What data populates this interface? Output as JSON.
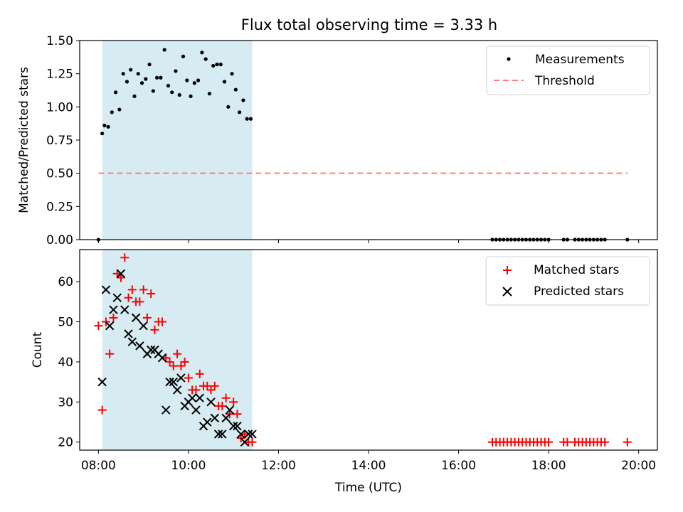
{
  "chart_data": [
    {
      "type": "scatter",
      "title": "Flux total observing time = 3.33 h",
      "ylabel": "Matched/Predicted stars",
      "xlabel": "",
      "xlim": [
        "07:35",
        "20:25"
      ],
      "ylim": [
        0,
        1.5
      ],
      "x_tick_labels": [
        "08:00",
        "10:00",
        "12:00",
        "14:00",
        "16:00",
        "18:00",
        "20:00"
      ],
      "y_tick_labels": [
        "0.00",
        "0.25",
        "0.50",
        "0.75",
        "1.00",
        "1.25",
        "1.50"
      ],
      "shaded_region": {
        "start": "08:05",
        "end": "11:25",
        "color": "#add8e6"
      },
      "legend": {
        "placement": "upper right",
        "entries": [
          "Measurements",
          "Threshold"
        ]
      },
      "series": [
        {
          "name": "Measurements",
          "marker": "dot",
          "color": "#000000",
          "points": [
            [
              "08:00",
              0.0
            ],
            [
              "08:05",
              0.8
            ],
            [
              "08:08",
              0.86
            ],
            [
              "08:13",
              0.85
            ],
            [
              "08:18",
              0.96
            ],
            [
              "08:23",
              1.11
            ],
            [
              "08:28",
              0.98
            ],
            [
              "08:33",
              1.25
            ],
            [
              "08:38",
              1.19
            ],
            [
              "08:43",
              1.28
            ],
            [
              "08:48",
              1.08
            ],
            [
              "08:53",
              1.25
            ],
            [
              "08:58",
              1.18
            ],
            [
              "09:03",
              1.21
            ],
            [
              "09:08",
              1.32
            ],
            [
              "09:13",
              1.12
            ],
            [
              "09:18",
              1.22
            ],
            [
              "09:23",
              1.22
            ],
            [
              "09:28",
              1.43
            ],
            [
              "09:33",
              1.16
            ],
            [
              "09:38",
              1.11
            ],
            [
              "09:43",
              1.27
            ],
            [
              "09:48",
              1.09
            ],
            [
              "09:53",
              1.38
            ],
            [
              "09:58",
              1.2
            ],
            [
              "10:03",
              1.08
            ],
            [
              "10:08",
              1.18
            ],
            [
              "10:13",
              1.2
            ],
            [
              "10:18",
              1.41
            ],
            [
              "10:23",
              1.36
            ],
            [
              "10:28",
              1.1
            ],
            [
              "10:33",
              1.31
            ],
            [
              "10:38",
              1.32
            ],
            [
              "10:43",
              1.32
            ],
            [
              "10:48",
              1.19
            ],
            [
              "10:53",
              1.0
            ],
            [
              "10:58",
              1.25
            ],
            [
              "11:03",
              1.13
            ],
            [
              "11:08",
              0.96
            ],
            [
              "11:13",
              1.05
            ],
            [
              "11:18",
              0.91
            ],
            [
              "11:23",
              0.91
            ],
            [
              "16:45",
              0.0
            ],
            [
              "16:50",
              0.0
            ],
            [
              "16:55",
              0.0
            ],
            [
              "17:00",
              0.0
            ],
            [
              "17:05",
              0.0
            ],
            [
              "17:10",
              0.0
            ],
            [
              "17:15",
              0.0
            ],
            [
              "17:20",
              0.0
            ],
            [
              "17:25",
              0.0
            ],
            [
              "17:30",
              0.0
            ],
            [
              "17:35",
              0.0
            ],
            [
              "17:40",
              0.0
            ],
            [
              "17:45",
              0.0
            ],
            [
              "17:50",
              0.0
            ],
            [
              "17:55",
              0.0
            ],
            [
              "18:00",
              0.0
            ],
            [
              "18:20",
              0.0
            ],
            [
              "18:25",
              0.0
            ],
            [
              "18:35",
              0.0
            ],
            [
              "18:40",
              0.0
            ],
            [
              "18:45",
              0.0
            ],
            [
              "18:50",
              0.0
            ],
            [
              "18:55",
              0.0
            ],
            [
              "19:00",
              0.0
            ],
            [
              "19:05",
              0.0
            ],
            [
              "19:10",
              0.0
            ],
            [
              "19:15",
              0.0
            ],
            [
              "19:45",
              0.0
            ]
          ]
        },
        {
          "name": "Threshold",
          "type": "line",
          "style": "dashed",
          "color": "#ff7a7a",
          "x": [
            "08:00",
            "19:45"
          ],
          "values": [
            0.5,
            0.5
          ]
        }
      ]
    },
    {
      "type": "scatter",
      "title": "",
      "ylabel": "Count",
      "xlabel": "Time (UTC)",
      "xlim": [
        "07:35",
        "20:25"
      ],
      "ylim": [
        18,
        68
      ],
      "x_tick_labels": [
        "08:00",
        "10:00",
        "12:00",
        "14:00",
        "16:00",
        "18:00",
        "20:00"
      ],
      "y_tick_labels": [
        "20",
        "30",
        "40",
        "50",
        "60"
      ],
      "shaded_region": {
        "start": "08:05",
        "end": "11:25",
        "color": "#add8e6"
      },
      "legend": {
        "placement": "upper right",
        "entries": [
          "Matched stars",
          "Predicted stars"
        ]
      },
      "series": [
        {
          "name": "Matched stars",
          "marker": "plus",
          "color": "#ff0000",
          "points": [
            [
              "08:00",
              49
            ],
            [
              "08:05",
              28
            ],
            [
              "08:10",
              50
            ],
            [
              "08:15",
              42
            ],
            [
              "08:20",
              51
            ],
            [
              "08:25",
              62
            ],
            [
              "08:30",
              61
            ],
            [
              "08:35",
              66
            ],
            [
              "08:40",
              56
            ],
            [
              "08:45",
              58
            ],
            [
              "08:50",
              55
            ],
            [
              "08:55",
              55
            ],
            [
              "09:00",
              58
            ],
            [
              "09:05",
              51
            ],
            [
              "09:10",
              57
            ],
            [
              "09:15",
              48
            ],
            [
              "09:20",
              50
            ],
            [
              "09:25",
              50
            ],
            [
              "09:30",
              41
            ],
            [
              "09:35",
              40
            ],
            [
              "09:40",
              39
            ],
            [
              "09:45",
              42
            ],
            [
              "09:50",
              39
            ],
            [
              "09:55",
              40
            ],
            [
              "10:00",
              36
            ],
            [
              "10:05",
              33
            ],
            [
              "10:10",
              33
            ],
            [
              "10:15",
              37
            ],
            [
              "10:20",
              34
            ],
            [
              "10:25",
              34
            ],
            [
              "10:30",
              33
            ],
            [
              "10:35",
              34
            ],
            [
              "10:40",
              29
            ],
            [
              "10:45",
              29
            ],
            [
              "10:50",
              31
            ],
            [
              "10:55",
              27
            ],
            [
              "11:00",
              30
            ],
            [
              "11:05",
              27
            ],
            [
              "11:10",
              21
            ],
            [
              "11:15",
              22
            ],
            [
              "11:20",
              20
            ],
            [
              "11:25",
              20
            ],
            [
              "16:45",
              20
            ],
            [
              "16:50",
              20
            ],
            [
              "16:55",
              20
            ],
            [
              "17:00",
              20
            ],
            [
              "17:05",
              20
            ],
            [
              "17:10",
              20
            ],
            [
              "17:15",
              20
            ],
            [
              "17:20",
              20
            ],
            [
              "17:25",
              20
            ],
            [
              "17:30",
              20
            ],
            [
              "17:35",
              20
            ],
            [
              "17:40",
              20
            ],
            [
              "17:45",
              20
            ],
            [
              "17:50",
              20
            ],
            [
              "17:55",
              20
            ],
            [
              "18:00",
              20
            ],
            [
              "18:20",
              20
            ],
            [
              "18:25",
              20
            ],
            [
              "18:35",
              20
            ],
            [
              "18:40",
              20
            ],
            [
              "18:45",
              20
            ],
            [
              "18:50",
              20
            ],
            [
              "18:55",
              20
            ],
            [
              "19:00",
              20
            ],
            [
              "19:05",
              20
            ],
            [
              "19:10",
              20
            ],
            [
              "19:15",
              20
            ],
            [
              "19:45",
              20
            ]
          ]
        },
        {
          "name": "Predicted stars",
          "marker": "x",
          "color": "#000000",
          "points": [
            [
              "08:05",
              35
            ],
            [
              "08:10",
              58
            ],
            [
              "08:15",
              49
            ],
            [
              "08:20",
              53
            ],
            [
              "08:25",
              56
            ],
            [
              "08:30",
              62
            ],
            [
              "08:35",
              53
            ],
            [
              "08:40",
              47
            ],
            [
              "08:45",
              45
            ],
            [
              "08:50",
              51
            ],
            [
              "08:55",
              44
            ],
            [
              "09:00",
              49
            ],
            [
              "09:05",
              42
            ],
            [
              "09:10",
              43
            ],
            [
              "09:15",
              43
            ],
            [
              "09:20",
              42
            ],
            [
              "09:25",
              41
            ],
            [
              "09:30",
              28
            ],
            [
              "09:35",
              35
            ],
            [
              "09:40",
              35
            ],
            [
              "09:45",
              33
            ],
            [
              "09:50",
              36
            ],
            [
              "09:55",
              29
            ],
            [
              "10:00",
              30
            ],
            [
              "10:05",
              31
            ],
            [
              "10:10",
              28
            ],
            [
              "10:15",
              31
            ],
            [
              "10:20",
              24
            ],
            [
              "10:25",
              25
            ],
            [
              "10:30",
              30
            ],
            [
              "10:35",
              26
            ],
            [
              "10:40",
              22
            ],
            [
              "10:45",
              22
            ],
            [
              "10:50",
              26
            ],
            [
              "10:55",
              28
            ],
            [
              "11:00",
              24
            ],
            [
              "11:05",
              24
            ],
            [
              "11:10",
              22
            ],
            [
              "11:15",
              20
            ],
            [
              "11:20",
              22
            ],
            [
              "11:25",
              22
            ]
          ]
        }
      ]
    }
  ]
}
